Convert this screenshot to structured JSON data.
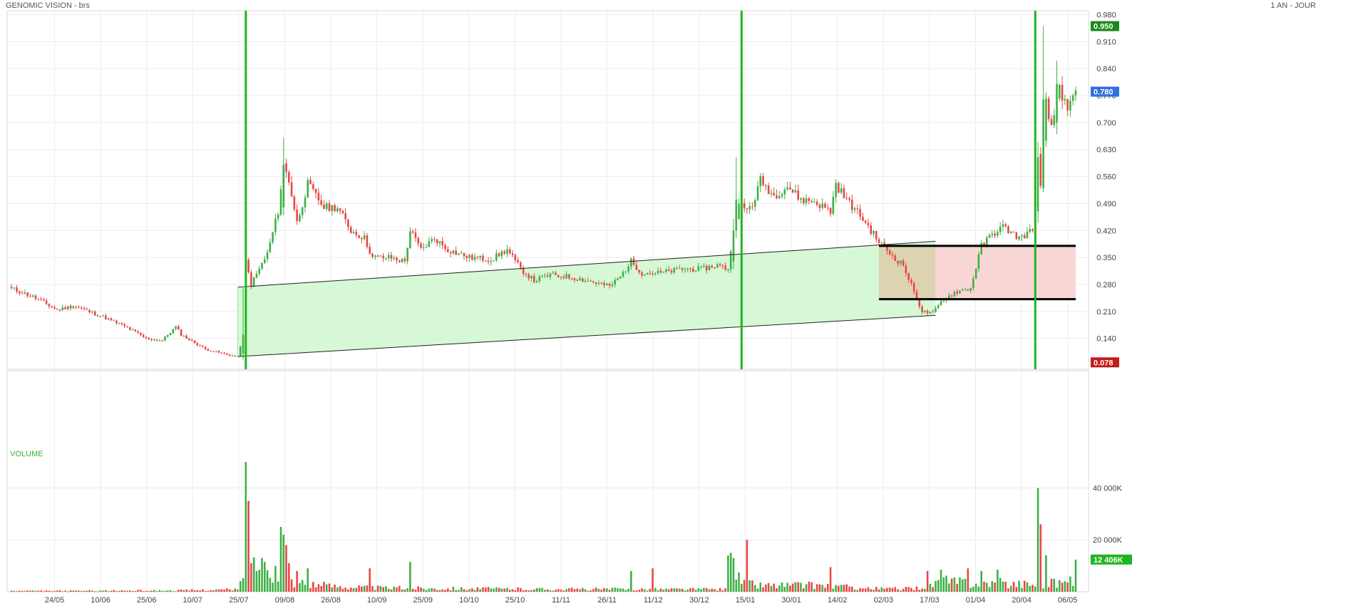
{
  "header": {
    "title": "GENOMIC VISION - brs",
    "period": "1 AN - JOUR"
  },
  "colors": {
    "up": "#3cb043",
    "down": "#e84545",
    "marker_line": "#1fb51f",
    "channel_fill": "#d6f8d6",
    "zone_fill": "#f9d6d6",
    "overlap_fill": "#dcd3b0",
    "badge_high": "#1a8a1a",
    "badge_last": "#2f6fe0",
    "badge_low": "#c41a1a",
    "badge_volume": "#1fb51f"
  },
  "price_axis": {
    "ticks": [
      "0.980",
      "0.910",
      "0.840",
      "0.770",
      "0.700",
      "0.630",
      "0.560",
      "0.490",
      "0.420",
      "0.350",
      "0.280",
      "0.210",
      "0.140"
    ],
    "range": [
      0.06,
      0.99
    ],
    "badges": {
      "high": "0.950",
      "last": "0.780",
      "low": "0.078"
    }
  },
  "date_axis": {
    "ticks": [
      "24/05",
      "10/06",
      "25/06",
      "10/07",
      "25/07",
      "09/08",
      "26/08",
      "10/09",
      "25/09",
      "10/10",
      "25/10",
      "11/11",
      "26/11",
      "11/12",
      "30/12",
      "15/01",
      "30/01",
      "14/02",
      "02/03",
      "17/03",
      "01/04",
      "20/04",
      "06/05"
    ]
  },
  "volume_panel": {
    "label": "VOLUME",
    "ticks": [
      "40 000K",
      "20 000K"
    ],
    "last_badge": "12 406K"
  },
  "chart_data": {
    "type": "candlestick",
    "title": "GENOMIC VISION - brs",
    "period": "1 AN - JOUR",
    "ylim": [
      0.06,
      0.99
    ],
    "date_ticks": [
      "24/05",
      "10/06",
      "25/06",
      "10/07",
      "25/07",
      "09/08",
      "26/08",
      "10/09",
      "25/09",
      "10/10",
      "25/10",
      "11/11",
      "26/11",
      "11/12",
      "30/12",
      "15/01",
      "30/01",
      "14/02",
      "02/03",
      "17/03",
      "01/04",
      "20/04",
      "06/05"
    ],
    "price_series": [
      {
        "t": 0,
        "c": 0.27
      },
      {
        "t": 9,
        "c": 0.245
      },
      {
        "t": 17,
        "c": 0.214
      },
      {
        "t": 23,
        "c": 0.225
      },
      {
        "t": 34,
        "c": 0.196
      },
      {
        "t": 43,
        "c": 0.168
      },
      {
        "t": 50,
        "c": 0.14
      },
      {
        "t": 56,
        "c": 0.135
      },
      {
        "t": 61,
        "c": 0.17
      },
      {
        "t": 63,
        "c": 0.15
      },
      {
        "t": 72,
        "c": 0.112
      },
      {
        "t": 80,
        "c": 0.098
      },
      {
        "t": 84,
        "c": 0.092
      },
      {
        "t": 86,
        "c": 0.15
      },
      {
        "t": 87,
        "c": 0.34
      },
      {
        "t": 89,
        "c": 0.28
      },
      {
        "t": 95,
        "c": 0.36
      },
      {
        "t": 99,
        "c": 0.47
      },
      {
        "t": 101,
        "c": 0.59
      },
      {
        "t": 103,
        "c": 0.55
      },
      {
        "t": 106,
        "c": 0.44
      },
      {
        "t": 110,
        "c": 0.54
      },
      {
        "t": 116,
        "c": 0.48
      },
      {
        "t": 121,
        "c": 0.48
      },
      {
        "t": 126,
        "c": 0.42
      },
      {
        "t": 131,
        "c": 0.4
      },
      {
        "t": 134,
        "c": 0.35
      },
      {
        "t": 140,
        "c": 0.35
      },
      {
        "t": 146,
        "c": 0.34
      },
      {
        "t": 148,
        "c": 0.42
      },
      {
        "t": 152,
        "c": 0.37
      },
      {
        "t": 157,
        "c": 0.4
      },
      {
        "t": 162,
        "c": 0.37
      },
      {
        "t": 170,
        "c": 0.35
      },
      {
        "t": 178,
        "c": 0.345
      },
      {
        "t": 184,
        "c": 0.37
      },
      {
        "t": 189,
        "c": 0.32
      },
      {
        "t": 194,
        "c": 0.29
      },
      {
        "t": 200,
        "c": 0.305
      },
      {
        "t": 207,
        "c": 0.3
      },
      {
        "t": 215,
        "c": 0.288
      },
      {
        "t": 222,
        "c": 0.275
      },
      {
        "t": 226,
        "c": 0.3
      },
      {
        "t": 230,
        "c": 0.34
      },
      {
        "t": 234,
        "c": 0.31
      },
      {
        "t": 241,
        "c": 0.31
      },
      {
        "t": 249,
        "c": 0.32
      },
      {
        "t": 256,
        "c": 0.32
      },
      {
        "t": 262,
        "c": 0.33
      },
      {
        "t": 266,
        "c": 0.32
      },
      {
        "t": 268,
        "c": 0.42
      },
      {
        "t": 270,
        "c": 0.5
      },
      {
        "t": 272,
        "c": 0.47
      },
      {
        "t": 275,
        "c": 0.485
      },
      {
        "t": 278,
        "c": 0.55
      },
      {
        "t": 283,
        "c": 0.51
      },
      {
        "t": 288,
        "c": 0.535
      },
      {
        "t": 293,
        "c": 0.5
      },
      {
        "t": 298,
        "c": 0.495
      },
      {
        "t": 304,
        "c": 0.47
      },
      {
        "t": 306,
        "c": 0.54
      },
      {
        "t": 310,
        "c": 0.5
      },
      {
        "t": 316,
        "c": 0.45
      },
      {
        "t": 321,
        "c": 0.4
      },
      {
        "t": 326,
        "c": 0.36
      },
      {
        "t": 331,
        "c": 0.33
      },
      {
        "t": 335,
        "c": 0.26
      },
      {
        "t": 338,
        "c": 0.21
      },
      {
        "t": 342,
        "c": 0.205
      },
      {
        "t": 345,
        "c": 0.235
      },
      {
        "t": 350,
        "c": 0.26
      },
      {
        "t": 356,
        "c": 0.27
      },
      {
        "t": 360,
        "c": 0.38
      },
      {
        "t": 364,
        "c": 0.41
      },
      {
        "t": 368,
        "c": 0.43
      },
      {
        "t": 374,
        "c": 0.4
      },
      {
        "t": 379,
        "c": 0.42
      },
      {
        "t": 381,
        "c": 0.61
      },
      {
        "t": 382,
        "c": 0.53
      },
      {
        "t": 384,
        "c": 0.75
      },
      {
        "t": 386,
        "c": 0.68
      },
      {
        "t": 389,
        "c": 0.8
      },
      {
        "t": 392,
        "c": 0.72
      },
      {
        "t": 395,
        "c": 0.78
      }
    ],
    "candle_overrides": [
      {
        "t": 86,
        "o": 0.1,
        "h": 0.27,
        "l": 0.085,
        "c": 0.15
      },
      {
        "t": 87,
        "o": 0.15,
        "h": 0.49,
        "l": 0.14,
        "c": 0.34
      },
      {
        "t": 101,
        "o": 0.48,
        "h": 0.66,
        "l": 0.46,
        "c": 0.59
      },
      {
        "t": 268,
        "o": 0.34,
        "h": 0.45,
        "l": 0.32,
        "c": 0.42
      },
      {
        "t": 269,
        "o": 0.42,
        "h": 0.61,
        "l": 0.4,
        "c": 0.5
      },
      {
        "t": 380,
        "o": 0.42,
        "h": 0.48,
        "l": 0.4,
        "c": 0.47
      },
      {
        "t": 381,
        "o": 0.47,
        "h": 0.65,
        "l": 0.44,
        "c": 0.61
      },
      {
        "t": 383,
        "o": 0.53,
        "h": 0.95,
        "l": 0.52,
        "c": 0.76
      },
      {
        "t": 388,
        "o": 0.7,
        "h": 0.86,
        "l": 0.67,
        "c": 0.8
      }
    ],
    "volume_ylim": [
      0,
      50000
    ],
    "volume_base": [
      {
        "t": 0,
        "v": 300
      },
      {
        "t": 60,
        "v": 500
      },
      {
        "t": 84,
        "v": 900
      },
      {
        "t": 88,
        "v": 9000
      },
      {
        "t": 96,
        "v": 9000
      },
      {
        "t": 101,
        "v": 5000
      },
      {
        "t": 115,
        "v": 2500
      },
      {
        "t": 135,
        "v": 1500
      },
      {
        "t": 200,
        "v": 1000
      },
      {
        "t": 265,
        "v": 1000
      },
      {
        "t": 268,
        "v": 6000
      },
      {
        "t": 276,
        "v": 2500
      },
      {
        "t": 300,
        "v": 2500
      },
      {
        "t": 320,
        "v": 1200
      },
      {
        "t": 335,
        "v": 1200
      },
      {
        "t": 345,
        "v": 4000
      },
      {
        "t": 380,
        "v": 3000
      },
      {
        "t": 395,
        "v": 4000
      }
    ],
    "volume_spikes": [
      {
        "t": 87,
        "v": 50000
      },
      {
        "t": 88,
        "v": 35000
      },
      {
        "t": 89,
        "v": 11000
      },
      {
        "t": 91,
        "v": 8000
      },
      {
        "t": 93,
        "v": 13000
      },
      {
        "t": 98,
        "v": 10000
      },
      {
        "t": 100,
        "v": 25000
      },
      {
        "t": 101,
        "v": 22000
      },
      {
        "t": 102,
        "v": 18000
      },
      {
        "t": 103,
        "v": 11000
      },
      {
        "t": 106,
        "v": 8000
      },
      {
        "t": 110,
        "v": 9000
      },
      {
        "t": 133,
        "v": 9000
      },
      {
        "t": 148,
        "v": 11500
      },
      {
        "t": 230,
        "v": 8000
      },
      {
        "t": 238,
        "v": 9000
      },
      {
        "t": 266,
        "v": 14000
      },
      {
        "t": 267,
        "v": 15000
      },
      {
        "t": 268,
        "v": 13000
      },
      {
        "t": 273,
        "v": 20000
      },
      {
        "t": 304,
        "v": 9500
      },
      {
        "t": 340,
        "v": 8000
      },
      {
        "t": 345,
        "v": 8500
      },
      {
        "t": 355,
        "v": 9000
      },
      {
        "t": 360,
        "v": 8000
      },
      {
        "t": 366,
        "v": 8500
      },
      {
        "t": 381,
        "v": 40000
      },
      {
        "t": 382,
        "v": 26000
      },
      {
        "t": 384,
        "v": 14000
      },
      {
        "t": 386,
        "v": 5000
      },
      {
        "t": 395,
        "v": 12406
      }
    ],
    "annotations": {
      "vertical_markers_t": [
        87,
        271,
        380
      ],
      "channel": {
        "upper": [
          [
            84,
            0.273
          ],
          [
            343,
            0.392
          ]
        ],
        "lower": [
          [
            84,
            0.093
          ],
          [
            343,
            0.2
          ]
        ]
      },
      "range_zone": {
        "t_start": 322,
        "t_end": 395,
        "top": 0.38,
        "bottom": 0.242
      }
    }
  }
}
